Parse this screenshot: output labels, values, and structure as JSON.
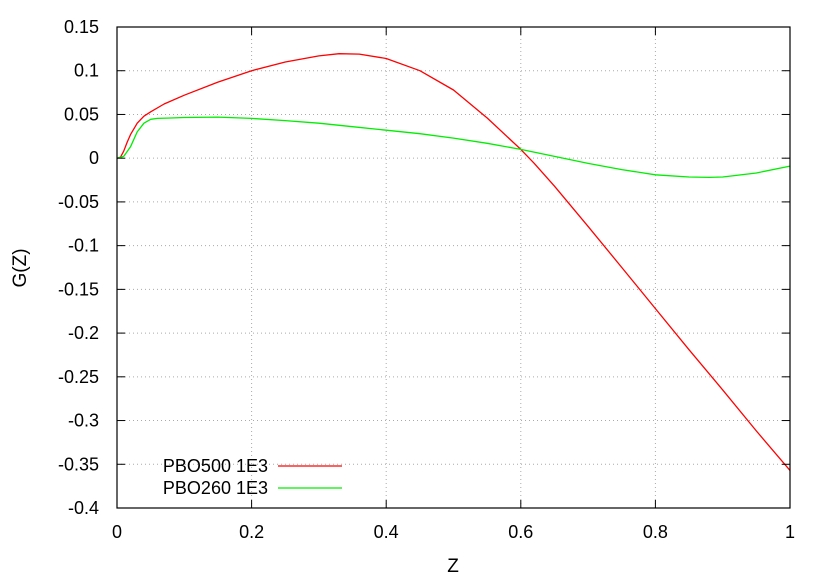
{
  "chart_data": {
    "type": "line",
    "title": "",
    "xlabel": "Z",
    "ylabel": "G(Z)",
    "xlim": [
      0,
      1
    ],
    "ylim": [
      -0.4,
      0.15
    ],
    "grid": true,
    "legend_position": "bottom-left",
    "x_ticks": [
      {
        "value": 0,
        "label": "0"
      },
      {
        "value": 0.2,
        "label": "0.2"
      },
      {
        "value": 0.4,
        "label": "0.4"
      },
      {
        "value": 0.6,
        "label": "0.6"
      },
      {
        "value": 0.8,
        "label": "0.8"
      },
      {
        "value": 1,
        "label": "1"
      }
    ],
    "y_ticks": [
      {
        "value": 0.15,
        "label": "0.15"
      },
      {
        "value": 0.1,
        "label": "0.1"
      },
      {
        "value": 0.05,
        "label": "0.05"
      },
      {
        "value": 0,
        "label": "0"
      },
      {
        "value": -0.05,
        "label": "-0.05"
      },
      {
        "value": -0.1,
        "label": "-0.1"
      },
      {
        "value": -0.15,
        "label": "-0.15"
      },
      {
        "value": -0.2,
        "label": "-0.2"
      },
      {
        "value": -0.25,
        "label": "-0.25"
      },
      {
        "value": -0.3,
        "label": "-0.3"
      },
      {
        "value": -0.35,
        "label": "-0.35"
      },
      {
        "value": -0.4,
        "label": "-0.4"
      }
    ],
    "series": [
      {
        "name": "PBO500 1E3",
        "color": "#ff0000",
        "x": [
          0,
          0.005,
          0.01,
          0.015,
          0.02,
          0.03,
          0.04,
          0.05,
          0.07,
          0.1,
          0.15,
          0.2,
          0.25,
          0.3,
          0.33,
          0.36,
          0.4,
          0.45,
          0.5,
          0.55,
          0.6,
          0.62,
          0.65,
          0.7,
          0.75,
          0.8,
          0.85,
          0.9,
          0.95,
          1.0
        ],
        "y": [
          0,
          0.001,
          0.008,
          0.018,
          0.027,
          0.04,
          0.048,
          0.053,
          0.062,
          0.072,
          0.087,
          0.1,
          0.11,
          0.117,
          0.1195,
          0.119,
          0.114,
          0.1,
          0.078,
          0.046,
          0.01,
          -0.006,
          -0.032,
          -0.078,
          -0.125,
          -0.172,
          -0.219,
          -0.265,
          -0.312,
          -0.357
        ]
      },
      {
        "name": "PBO260 1E3",
        "color": "#00ee00",
        "x": [
          0,
          0.01,
          0.02,
          0.03,
          0.04,
          0.05,
          0.06,
          0.08,
          0.1,
          0.15,
          0.2,
          0.25,
          0.3,
          0.35,
          0.4,
          0.45,
          0.5,
          0.55,
          0.6,
          0.65,
          0.7,
          0.75,
          0.8,
          0.85,
          0.88,
          0.9,
          0.95,
          1.0
        ],
        "y": [
          0,
          0.002,
          0.013,
          0.03,
          0.04,
          0.0445,
          0.0455,
          0.046,
          0.0465,
          0.047,
          0.0455,
          0.043,
          0.04,
          0.036,
          0.032,
          0.028,
          0.023,
          0.017,
          0.01,
          0.002,
          -0.006,
          -0.013,
          -0.019,
          -0.0215,
          -0.022,
          -0.0215,
          -0.017,
          -0.009
        ]
      }
    ]
  }
}
